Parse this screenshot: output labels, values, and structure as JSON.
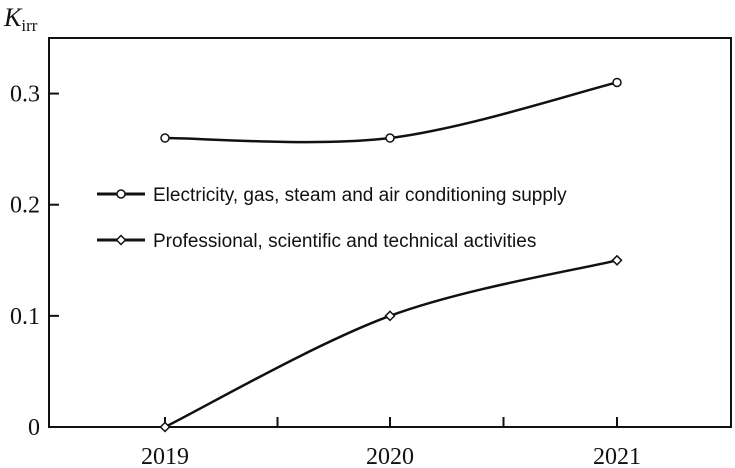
{
  "chart_data": {
    "type": "line",
    "title": "",
    "ylabel_main": "K",
    "ylabel_sub": "irr",
    "xlabel": "",
    "categories": [
      "2019",
      "2020",
      "2021"
    ],
    "ylim": [
      0,
      0.35
    ],
    "yticks": [
      0,
      0.1,
      0.2,
      0.3
    ],
    "ytick_labels": [
      "0",
      "0.1",
      "0.2",
      "0.3"
    ],
    "grid": false,
    "legend": "center",
    "series": [
      {
        "name": "Electricity, gas, steam and air conditioning supply",
        "marker": "circle",
        "values": [
          0.26,
          0.26,
          0.31
        ]
      },
      {
        "name": "Professional, scientific and technical activities",
        "marker": "diamond",
        "values": [
          0.0,
          0.1,
          0.15
        ]
      }
    ]
  }
}
